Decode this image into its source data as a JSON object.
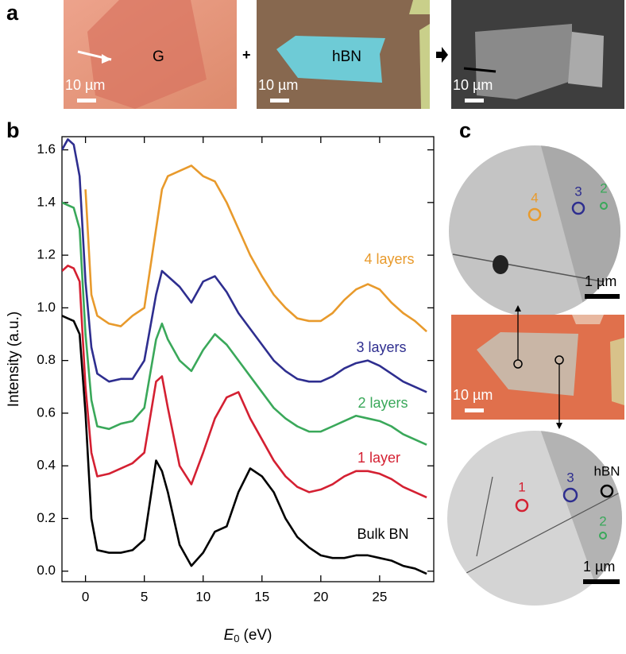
{
  "panel_labels": [
    "a",
    "b",
    "c"
  ],
  "panel_a": {
    "image1_label": "G",
    "plus": "+",
    "image2_label": "hBN",
    "scale_bars": [
      "10 µm",
      "10 µm",
      "10 µm"
    ]
  },
  "panel_c": {
    "top_markers": [
      "4",
      "3",
      "2"
    ],
    "top_scale": "1 µm",
    "middle_scale": "10 µm",
    "bottom_markers": [
      "1",
      "3",
      "hBN",
      "2"
    ],
    "bottom_scale": "1 µm"
  },
  "chart_data": {
    "type": "line",
    "x_label": {
      "variable": "E",
      "subscript": "0",
      "unit": "(eV)"
    },
    "y_label": "Intensity (a.u.)",
    "x": [
      -2,
      -1.5,
      -1,
      -0.5,
      0,
      0.5,
      1,
      2,
      3,
      4,
      5,
      6,
      6.5,
      7,
      8,
      9,
      10,
      11,
      12,
      13,
      14,
      15,
      16,
      17,
      18,
      19,
      20,
      21,
      22,
      23,
      24,
      25,
      26,
      27,
      28,
      29
    ],
    "series": [
      {
        "name": "4 layers",
        "color": "#e89a2c",
        "values": [
          null,
          null,
          null,
          null,
          1.45,
          1.05,
          0.97,
          0.94,
          0.93,
          0.97,
          1.0,
          1.3,
          1.45,
          1.5,
          1.52,
          1.54,
          1.5,
          1.48,
          1.4,
          1.3,
          1.2,
          1.12,
          1.05,
          1.0,
          0.96,
          0.95,
          0.95,
          0.98,
          1.03,
          1.07,
          1.09,
          1.07,
          1.02,
          0.98,
          0.95,
          0.91
        ]
      },
      {
        "name": "3 layers",
        "color": "#2e2e8f",
        "values": [
          1.6,
          1.64,
          1.62,
          1.5,
          1.1,
          0.85,
          0.75,
          0.72,
          0.73,
          0.73,
          0.8,
          1.05,
          1.14,
          1.12,
          1.08,
          1.02,
          1.1,
          1.12,
          1.06,
          0.98,
          0.92,
          0.86,
          0.8,
          0.76,
          0.73,
          0.72,
          0.72,
          0.74,
          0.77,
          0.79,
          0.8,
          0.78,
          0.75,
          0.72,
          0.7,
          0.68
        ]
      },
      {
        "name": "2 layers",
        "color": "#3aa85a",
        "values": [
          1.4,
          1.39,
          1.38,
          1.3,
          0.9,
          0.65,
          0.55,
          0.54,
          0.56,
          0.57,
          0.62,
          0.88,
          0.94,
          0.88,
          0.8,
          0.76,
          0.84,
          0.9,
          0.86,
          0.8,
          0.74,
          0.68,
          0.62,
          0.58,
          0.55,
          0.53,
          0.53,
          0.55,
          0.57,
          0.59,
          0.58,
          0.57,
          0.55,
          0.52,
          0.5,
          0.48
        ]
      },
      {
        "name": "1 layer",
        "color": "#d42032",
        "values": [
          1.14,
          1.16,
          1.15,
          1.1,
          0.7,
          0.45,
          0.36,
          0.37,
          0.39,
          0.41,
          0.45,
          0.72,
          0.74,
          0.62,
          0.4,
          0.33,
          0.45,
          0.58,
          0.66,
          0.68,
          0.58,
          0.5,
          0.42,
          0.36,
          0.32,
          0.3,
          0.31,
          0.33,
          0.36,
          0.38,
          0.38,
          0.37,
          0.35,
          0.32,
          0.3,
          0.28
        ]
      },
      {
        "name": "Bulk BN",
        "color": "#000000",
        "values": [
          0.97,
          0.96,
          0.95,
          0.9,
          0.6,
          0.2,
          0.08,
          0.07,
          0.07,
          0.08,
          0.12,
          0.42,
          0.38,
          0.3,
          0.1,
          0.02,
          0.07,
          0.15,
          0.17,
          0.3,
          0.39,
          0.36,
          0.3,
          0.2,
          0.13,
          0.09,
          0.06,
          0.05,
          0.05,
          0.06,
          0.06,
          0.05,
          0.04,
          0.02,
          0.01,
          -0.01
        ]
      }
    ],
    "xlim": [
      -2,
      29.6
    ],
    "xticks": [
      0,
      5,
      10,
      15,
      20,
      25
    ],
    "ylim": [
      -0.04,
      1.65
    ],
    "yticks": [
      {
        "value": 0,
        "label": "0.0"
      },
      0.2,
      0.4,
      0.6,
      0.8,
      {
        "value": 1,
        "label": "1.0"
      },
      1.2,
      1.4,
      1.6
    ]
  }
}
